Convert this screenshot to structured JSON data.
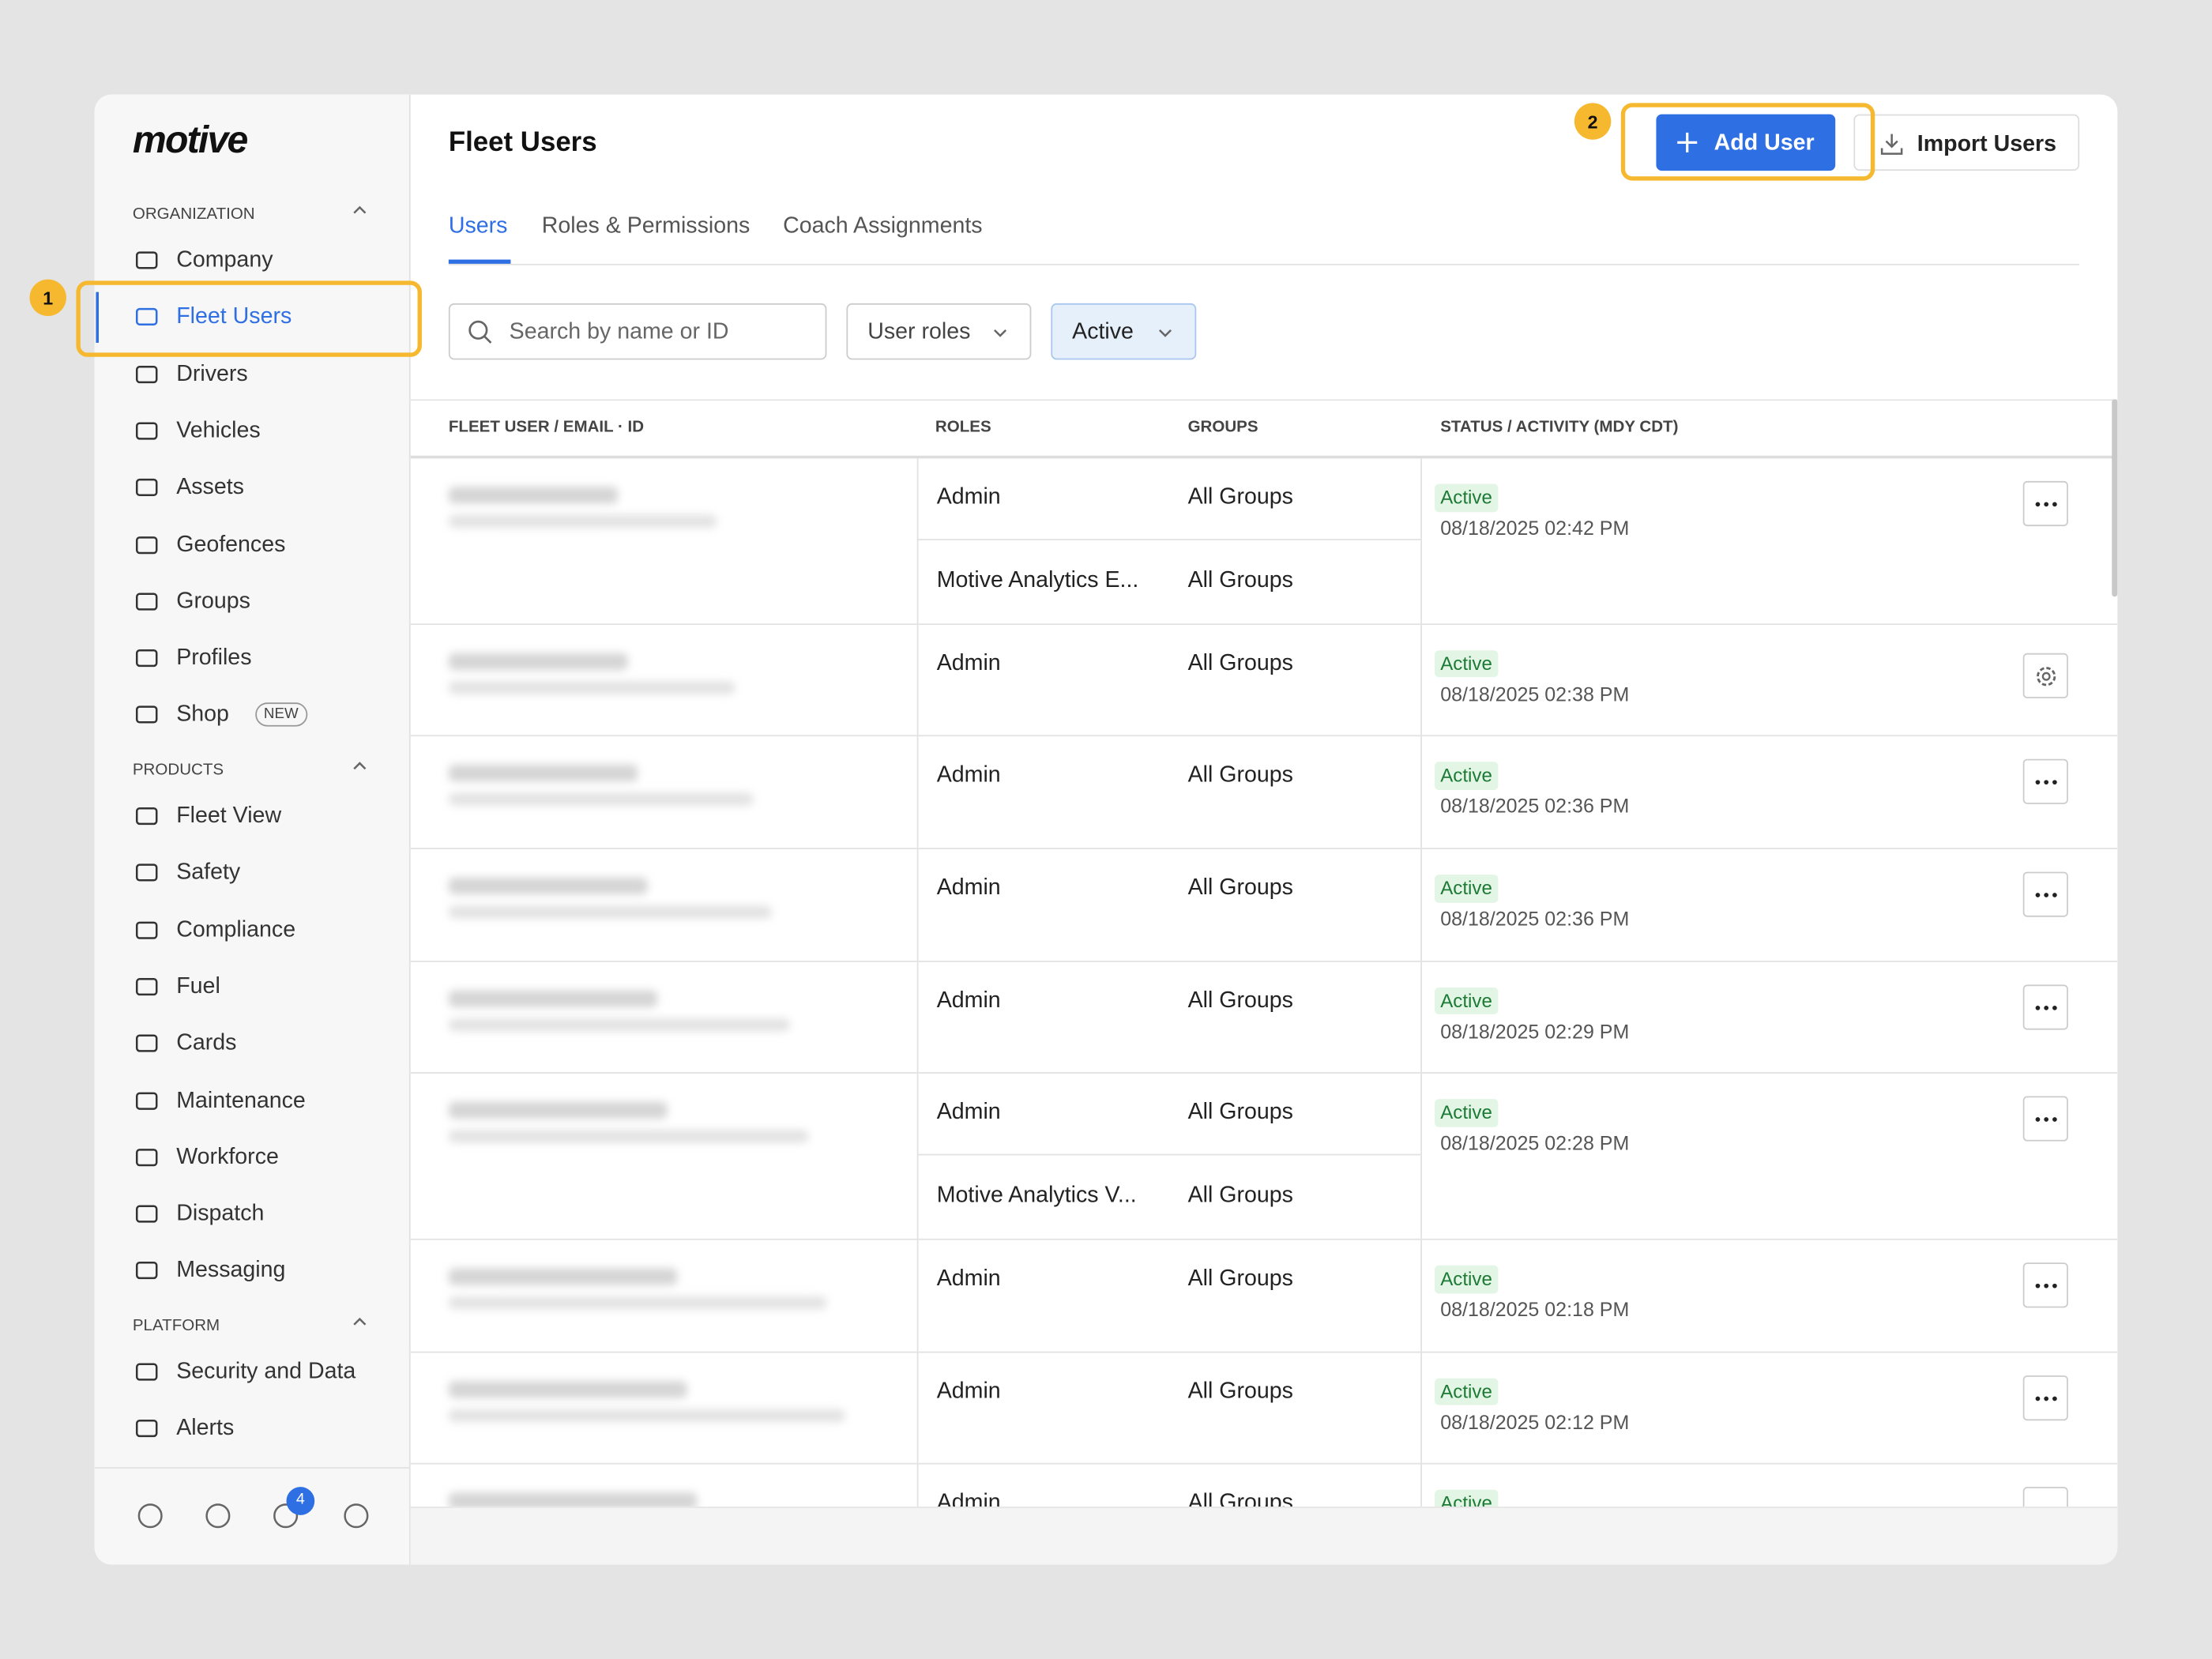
{
  "sidebar": {
    "logo": "motive",
    "sections": [
      {
        "title": "ORGANIZATION",
        "items": [
          {
            "label": "Company"
          },
          {
            "label": "Fleet Users",
            "selected": true
          },
          {
            "label": "Drivers"
          },
          {
            "label": "Vehicles"
          },
          {
            "label": "Assets"
          },
          {
            "label": "Geofences"
          },
          {
            "label": "Groups"
          },
          {
            "label": "Profiles"
          },
          {
            "label": "Shop",
            "badge": "NEW"
          }
        ]
      },
      {
        "title": "PRODUCTS",
        "items": [
          {
            "label": "Fleet View"
          },
          {
            "label": "Safety"
          },
          {
            "label": "Compliance"
          },
          {
            "label": "Fuel"
          },
          {
            "label": "Cards"
          },
          {
            "label": "Maintenance"
          },
          {
            "label": "Workforce"
          },
          {
            "label": "Dispatch"
          },
          {
            "label": "Messaging"
          }
        ]
      },
      {
        "title": "PLATFORM",
        "items": [
          {
            "label": "Security and Data"
          },
          {
            "label": "Alerts"
          }
        ]
      }
    ],
    "notification_count": 4
  },
  "callouts": [
    1,
    2
  ],
  "header": {
    "title": "Fleet Users",
    "primary_button": "Add User",
    "secondary_button": "Import Users"
  },
  "tabs": {
    "items": [
      "Users",
      "Roles & Permissions",
      "Coach Assignments"
    ],
    "active": 0
  },
  "filters": {
    "search_placeholder": "Search by name or ID",
    "roles": "User roles",
    "status": "Active"
  },
  "table": {
    "columns": [
      "FLEET USER / EMAIL · ID",
      "ROLES",
      "GROUPS",
      "STATUS / ACTIVITY (MDY CDT)"
    ],
    "rows": [
      {
        "roles": [
          {
            "role": "Admin",
            "groups": "All Groups"
          },
          {
            "role": "Motive Analytics E...",
            "groups": "All Groups"
          }
        ],
        "status": "Active",
        "activity": "08/18/2025 02:42 PM",
        "action": "more"
      },
      {
        "roles": [
          {
            "role": "Admin",
            "groups": "All Groups"
          }
        ],
        "status": "Active",
        "activity": "08/18/2025 02:38 PM",
        "action": "settings"
      },
      {
        "roles": [
          {
            "role": "Admin",
            "groups": "All Groups"
          }
        ],
        "status": "Active",
        "activity": "08/18/2025 02:36 PM",
        "action": "more"
      },
      {
        "roles": [
          {
            "role": "Admin",
            "groups": "All Groups"
          }
        ],
        "status": "Active",
        "activity": "08/18/2025 02:36 PM",
        "action": "more"
      },
      {
        "roles": [
          {
            "role": "Admin",
            "groups": "All Groups"
          }
        ],
        "status": "Active",
        "activity": "08/18/2025 02:29 PM",
        "action": "more"
      },
      {
        "roles": [
          {
            "role": "Admin",
            "groups": "All Groups"
          },
          {
            "role": "Motive Analytics V...",
            "groups": "All Groups"
          }
        ],
        "status": "Active",
        "activity": "08/18/2025 02:28 PM",
        "action": "more"
      },
      {
        "roles": [
          {
            "role": "Admin",
            "groups": "All Groups"
          }
        ],
        "status": "Active",
        "activity": "08/18/2025 02:18 PM",
        "action": "more"
      },
      {
        "roles": [
          {
            "role": "Admin",
            "groups": "All Groups"
          }
        ],
        "status": "Active",
        "activity": "08/18/2025 02:12 PM",
        "action": "more"
      },
      {
        "roles": [
          {
            "role": "Admin",
            "groups": "All Groups"
          }
        ],
        "status": "Active",
        "action": "more"
      }
    ]
  }
}
